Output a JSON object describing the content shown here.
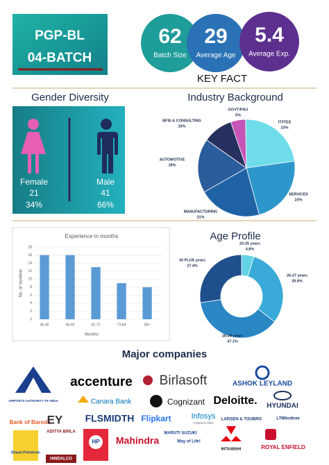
{
  "header": {
    "line1": "PGP-BL",
    "line2": "04-BATCH"
  },
  "key_facts": {
    "title": "KEY FACT",
    "items": [
      {
        "value": 62,
        "label": "Batch Size"
      },
      {
        "value": 29,
        "label": "Average Age"
      },
      {
        "value": 5.4,
        "label": "Average Exp."
      }
    ]
  },
  "gender": {
    "title": "Gender Diversity",
    "female": {
      "label": "Female",
      "count": 21,
      "percent": "34%"
    },
    "male": {
      "label": "Male",
      "count": 41,
      "percent": "66%"
    }
  },
  "chart_data": [
    {
      "type": "pie",
      "title": "Industry Background",
      "categories": [
        "GOVT/PSU",
        "IT/ITES",
        "SERVICES",
        "MANUFACTURING",
        "AUTOMOTIVE",
        "BFSI & CONSULTING"
      ],
      "values": [
        5,
        23,
        23,
        21,
        18,
        10
      ],
      "value_labels": [
        "5%",
        "23%",
        "23%",
        "21%",
        "18%",
        "10%"
      ],
      "colors": [
        "#c655b8",
        "#6fdcea",
        "#2d97cc",
        "#1f63a6",
        "#2b5c9b",
        "#26305e"
      ]
    },
    {
      "type": "bar",
      "title": "Experience in months",
      "x_label": "Months",
      "y_label": "No. of students",
      "categories": [
        "36-48",
        "49-60",
        "61-72",
        "73-84",
        "85+"
      ],
      "values": [
        16,
        16,
        13,
        9,
        8
      ],
      "color": "#5b9bd5",
      "ylim": [
        0,
        18
      ],
      "yticks": [
        0,
        2,
        4,
        6,
        8,
        10,
        12,
        14,
        16,
        18
      ],
      "grid": true
    },
    {
      "type": "donut",
      "title": "Age Profile",
      "categories": [
        "24-25 years",
        "26-27 years",
        "28-29 years",
        "30 PLUS years"
      ],
      "values": [
        4.8,
        30.6,
        37.1,
        27.4
      ],
      "value_labels": [
        "4.8%",
        "30.6%",
        "37.1%",
        "27.4%"
      ],
      "colors": [
        "#63d3e3",
        "#3aabd8",
        "#2b86c4",
        "#1f4f8c"
      ]
    }
  ],
  "companies": {
    "title": "Major companies",
    "names": [
      "AIRPORTS AUTHORITY OF INDIA",
      "accenture",
      "Birlasoft",
      "ASHOK LEYLAND",
      "Canara Bank",
      "Cognizant",
      "Deloitte.",
      "HYUNDAI",
      "Bank of Baroda",
      "EY",
      "FLSMIDTH",
      "Flipkart",
      "Infosys",
      "CONSULTING",
      "LARSEN & TOUBRO",
      "LTIMindtree",
      "Bharat Petroleum",
      "ADITYA BIRLA",
      "HINDALCO",
      "HP",
      "Mahindra",
      "MARUTI SUZUKI",
      "Way of Life!",
      "MITSUBISHI",
      "ROYAL ENFIELD"
    ]
  }
}
